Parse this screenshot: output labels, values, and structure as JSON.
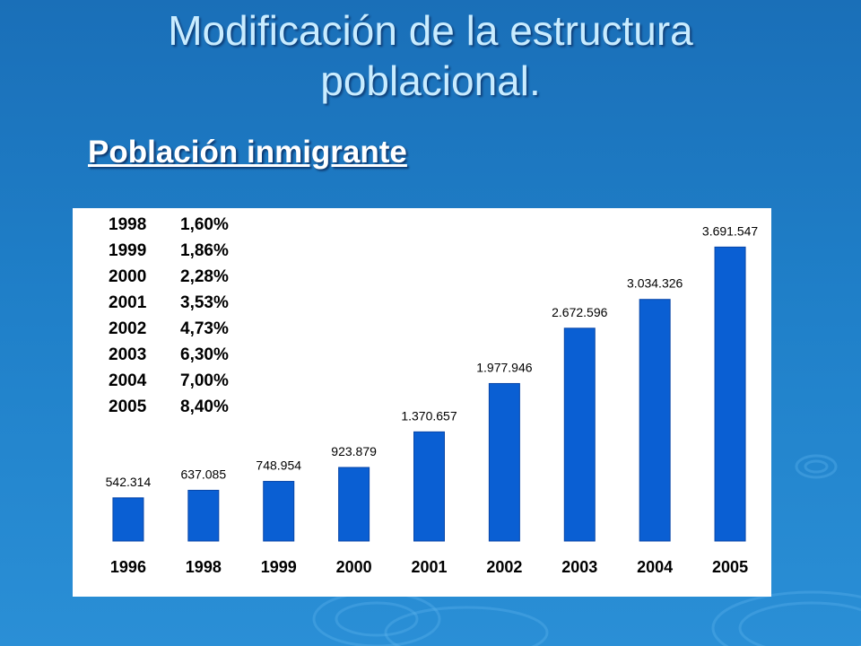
{
  "slide": {
    "title_line1": "Modificación de la estructura",
    "title_line2": "poblacional.",
    "subtitle": "Población inmigrante"
  },
  "percent_table": [
    {
      "year": "1998",
      "pct": "1,60%"
    },
    {
      "year": "1999",
      "pct": "1,86%"
    },
    {
      "year": "2000",
      "pct": "2,28%"
    },
    {
      "year": "2001",
      "pct": "3,53%"
    },
    {
      "year": "2002",
      "pct": "4,73%"
    },
    {
      "year": "2003",
      "pct": "6,30%"
    },
    {
      "year": "2004",
      "pct": "7,00%"
    },
    {
      "year": "2005",
      "pct": "8,40%"
    }
  ],
  "colors": {
    "bar": "#0a5fd3",
    "bar_edge": "#0846a8",
    "background": "#1f7fc8"
  },
  "chart_data": {
    "type": "bar",
    "title": "",
    "xlabel": "",
    "ylabel": "",
    "categories": [
      "1996",
      "1998",
      "1999",
      "2000",
      "2001",
      "2002",
      "2003",
      "2004",
      "2005"
    ],
    "values": [
      542314,
      637085,
      748954,
      923879,
      1370657,
      1977946,
      2672596,
      3034326,
      3691547
    ],
    "value_labels": [
      "542.314",
      "637.085",
      "748.954",
      "923.879",
      "1.370.657",
      "1.977.946",
      "2.672.596",
      "3.034.326",
      "3.691.547"
    ],
    "ylim": [
      0,
      4000000
    ],
    "grid": false,
    "legend": "none"
  }
}
